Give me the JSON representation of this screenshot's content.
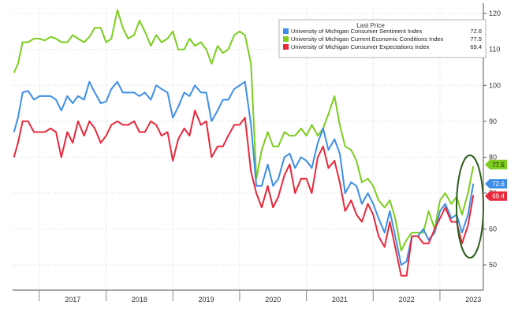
{
  "chart_data": {
    "type": "line",
    "legend": {
      "header": "Last Price",
      "placement": "top-right"
    },
    "x_labels": [
      "2017",
      "2018",
      "2019",
      "2020",
      "2021",
      "2022",
      "2023"
    ],
    "x_range": [
      2016.6,
      2023.65
    ],
    "ylim": [
      43,
      122
    ],
    "y_ticks": [
      50,
      60,
      70,
      80,
      90,
      100,
      110,
      120
    ],
    "y_axis_side": "right",
    "grid": true,
    "series": [
      {
        "name": "University of Michigan Current Economic Conditions Index",
        "last": "77.5",
        "color": "#7ccd1f",
        "points": [
          [
            2016.62,
            103.5
          ],
          [
            2016.68,
            106
          ],
          [
            2016.75,
            112
          ],
          [
            2016.83,
            112
          ],
          [
            2016.92,
            113
          ],
          [
            2017.0,
            113
          ],
          [
            2017.08,
            112.5
          ],
          [
            2017.17,
            113.5
          ],
          [
            2017.25,
            113
          ],
          [
            2017.33,
            112
          ],
          [
            2017.42,
            112
          ],
          [
            2017.5,
            114
          ],
          [
            2017.58,
            113
          ],
          [
            2017.67,
            112
          ],
          [
            2017.75,
            113.5
          ],
          [
            2017.83,
            116
          ],
          [
            2017.92,
            116
          ],
          [
            2018.0,
            112
          ],
          [
            2018.08,
            113
          ],
          [
            2018.17,
            121
          ],
          [
            2018.25,
            116
          ],
          [
            2018.33,
            113
          ],
          [
            2018.42,
            114
          ],
          [
            2018.5,
            118
          ],
          [
            2018.58,
            115
          ],
          [
            2018.67,
            111
          ],
          [
            2018.75,
            114
          ],
          [
            2018.83,
            112
          ],
          [
            2018.92,
            113
          ],
          [
            2019.0,
            115
          ],
          [
            2019.08,
            110
          ],
          [
            2019.17,
            110
          ],
          [
            2019.25,
            113
          ],
          [
            2019.33,
            111
          ],
          [
            2019.42,
            112
          ],
          [
            2019.5,
            110
          ],
          [
            2019.58,
            106
          ],
          [
            2019.67,
            111
          ],
          [
            2019.75,
            109
          ],
          [
            2019.83,
            110
          ],
          [
            2019.92,
            114
          ],
          [
            2020.0,
            115
          ],
          [
            2020.08,
            114
          ],
          [
            2020.17,
            106
          ],
          [
            2020.25,
            74
          ],
          [
            2020.33,
            82
          ],
          [
            2020.42,
            87
          ],
          [
            2020.5,
            83
          ],
          [
            2020.58,
            83
          ],
          [
            2020.67,
            87
          ],
          [
            2020.75,
            86
          ],
          [
            2020.83,
            86
          ],
          [
            2020.92,
            88
          ],
          [
            2021.0,
            86
          ],
          [
            2021.08,
            89
          ],
          [
            2021.17,
            86
          ],
          [
            2021.25,
            88
          ],
          [
            2021.33,
            92
          ],
          [
            2021.42,
            97
          ],
          [
            2021.5,
            89
          ],
          [
            2021.58,
            83
          ],
          [
            2021.67,
            82
          ],
          [
            2021.75,
            79
          ],
          [
            2021.83,
            73
          ],
          [
            2021.92,
            74
          ],
          [
            2022.0,
            72
          ],
          [
            2022.08,
            68
          ],
          [
            2022.17,
            66
          ],
          [
            2022.25,
            68
          ],
          [
            2022.33,
            63
          ],
          [
            2022.42,
            54
          ],
          [
            2022.5,
            57
          ],
          [
            2022.58,
            59
          ],
          [
            2022.67,
            59
          ],
          [
            2022.75,
            59
          ],
          [
            2022.83,
            65
          ],
          [
            2022.92,
            60
          ],
          [
            2023.0,
            68
          ],
          [
            2023.08,
            70
          ],
          [
            2023.17,
            67
          ],
          [
            2023.25,
            69
          ],
          [
            2023.33,
            64
          ],
          [
            2023.42,
            70
          ],
          [
            2023.5,
            77.5
          ]
        ]
      },
      {
        "name": "University of Michigan Consumer Sentiment Index",
        "last": "72.6",
        "color": "#3d8ee6",
        "points": [
          [
            2016.62,
            87
          ],
          [
            2016.68,
            91
          ],
          [
            2016.75,
            98
          ],
          [
            2016.83,
            98.5
          ],
          [
            2016.92,
            96
          ],
          [
            2017.0,
            97
          ],
          [
            2017.08,
            97
          ],
          [
            2017.17,
            97
          ],
          [
            2017.25,
            96
          ],
          [
            2017.33,
            93
          ],
          [
            2017.42,
            97
          ],
          [
            2017.5,
            95
          ],
          [
            2017.58,
            97
          ],
          [
            2017.67,
            96
          ],
          [
            2017.75,
            101
          ],
          [
            2017.83,
            98
          ],
          [
            2017.92,
            95
          ],
          [
            2018.0,
            95.5
          ],
          [
            2018.08,
            99
          ],
          [
            2018.17,
            101
          ],
          [
            2018.25,
            98
          ],
          [
            2018.33,
            98
          ],
          [
            2018.42,
            98
          ],
          [
            2018.5,
            97
          ],
          [
            2018.58,
            98
          ],
          [
            2018.67,
            96
          ],
          [
            2018.75,
            100
          ],
          [
            2018.83,
            99
          ],
          [
            2018.92,
            98
          ],
          [
            2019.0,
            91
          ],
          [
            2019.08,
            94
          ],
          [
            2019.17,
            98
          ],
          [
            2019.25,
            97
          ],
          [
            2019.33,
            100
          ],
          [
            2019.42,
            98
          ],
          [
            2019.5,
            98
          ],
          [
            2019.58,
            90
          ],
          [
            2019.67,
            93
          ],
          [
            2019.75,
            96
          ],
          [
            2019.83,
            96
          ],
          [
            2019.92,
            99
          ],
          [
            2020.0,
            100
          ],
          [
            2020.08,
            101
          ],
          [
            2020.17,
            89
          ],
          [
            2020.25,
            72
          ],
          [
            2020.33,
            72
          ],
          [
            2020.42,
            78
          ],
          [
            2020.5,
            72
          ],
          [
            2020.58,
            74
          ],
          [
            2020.67,
            80
          ],
          [
            2020.75,
            81
          ],
          [
            2020.83,
            77
          ],
          [
            2020.92,
            80
          ],
          [
            2021.0,
            79
          ],
          [
            2021.08,
            77
          ],
          [
            2021.17,
            84
          ],
          [
            2021.25,
            88
          ],
          [
            2021.33,
            82
          ],
          [
            2021.42,
            85
          ],
          [
            2021.5,
            81
          ],
          [
            2021.58,
            70
          ],
          [
            2021.67,
            73
          ],
          [
            2021.75,
            72
          ],
          [
            2021.83,
            67
          ],
          [
            2021.92,
            70
          ],
          [
            2022.0,
            67
          ],
          [
            2022.08,
            63
          ],
          [
            2022.17,
            59
          ],
          [
            2022.25,
            65
          ],
          [
            2022.33,
            58
          ],
          [
            2022.42,
            50
          ],
          [
            2022.5,
            51
          ],
          [
            2022.58,
            58
          ],
          [
            2022.67,
            58
          ],
          [
            2022.75,
            60
          ],
          [
            2022.83,
            57
          ],
          [
            2022.92,
            59
          ],
          [
            2023.0,
            65
          ],
          [
            2023.08,
            67
          ],
          [
            2023.17,
            63
          ],
          [
            2023.25,
            64
          ],
          [
            2023.33,
            59
          ],
          [
            2023.42,
            64
          ],
          [
            2023.5,
            72.6
          ]
        ]
      },
      {
        "name": "University of Michigan Consumer Expectations Index",
        "last": "69.4",
        "color": "#e8283c",
        "points": [
          [
            2016.62,
            80
          ],
          [
            2016.68,
            84
          ],
          [
            2016.75,
            90
          ],
          [
            2016.83,
            90
          ],
          [
            2016.92,
            87
          ],
          [
            2017.0,
            87
          ],
          [
            2017.08,
            87
          ],
          [
            2017.17,
            88
          ],
          [
            2017.25,
            87
          ],
          [
            2017.33,
            80
          ],
          [
            2017.42,
            87
          ],
          [
            2017.5,
            84
          ],
          [
            2017.58,
            90
          ],
          [
            2017.67,
            86
          ],
          [
            2017.75,
            90
          ],
          [
            2017.83,
            88
          ],
          [
            2017.92,
            84
          ],
          [
            2018.0,
            86
          ],
          [
            2018.08,
            89
          ],
          [
            2018.17,
            90
          ],
          [
            2018.25,
            89
          ],
          [
            2018.33,
            89
          ],
          [
            2018.42,
            90
          ],
          [
            2018.5,
            87
          ],
          [
            2018.58,
            87
          ],
          [
            2018.67,
            90
          ],
          [
            2018.75,
            89
          ],
          [
            2018.83,
            86
          ],
          [
            2018.92,
            87
          ],
          [
            2019.0,
            79
          ],
          [
            2019.08,
            85
          ],
          [
            2019.17,
            88
          ],
          [
            2019.25,
            86
          ],
          [
            2019.33,
            93
          ],
          [
            2019.42,
            89
          ],
          [
            2019.5,
            90
          ],
          [
            2019.58,
            80
          ],
          [
            2019.67,
            83
          ],
          [
            2019.75,
            83
          ],
          [
            2019.83,
            86
          ],
          [
            2019.92,
            89
          ],
          [
            2020.0,
            89
          ],
          [
            2020.08,
            91
          ],
          [
            2020.17,
            76
          ],
          [
            2020.25,
            70
          ],
          [
            2020.33,
            66
          ],
          [
            2020.42,
            72
          ],
          [
            2020.5,
            66
          ],
          [
            2020.58,
            69
          ],
          [
            2020.67,
            75
          ],
          [
            2020.75,
            78
          ],
          [
            2020.83,
            70
          ],
          [
            2020.92,
            74
          ],
          [
            2021.0,
            74
          ],
          [
            2021.08,
            70
          ],
          [
            2021.17,
            80
          ],
          [
            2021.25,
            83
          ],
          [
            2021.33,
            77
          ],
          [
            2021.42,
            79
          ],
          [
            2021.5,
            73
          ],
          [
            2021.58,
            65
          ],
          [
            2021.67,
            68
          ],
          [
            2021.75,
            64
          ],
          [
            2021.83,
            62
          ],
          [
            2021.92,
            67
          ],
          [
            2022.0,
            64
          ],
          [
            2022.08,
            58
          ],
          [
            2022.17,
            55
          ],
          [
            2022.25,
            62
          ],
          [
            2022.33,
            55
          ],
          [
            2022.42,
            47
          ],
          [
            2022.5,
            47
          ],
          [
            2022.58,
            58
          ],
          [
            2022.67,
            58
          ],
          [
            2022.75,
            56
          ],
          [
            2022.83,
            56
          ],
          [
            2022.92,
            60
          ],
          [
            2023.0,
            63
          ],
          [
            2023.08,
            66
          ],
          [
            2023.17,
            62
          ],
          [
            2023.25,
            62
          ],
          [
            2023.33,
            56
          ],
          [
            2023.42,
            61
          ],
          [
            2023.5,
            69.4
          ]
        ]
      }
    ]
  }
}
